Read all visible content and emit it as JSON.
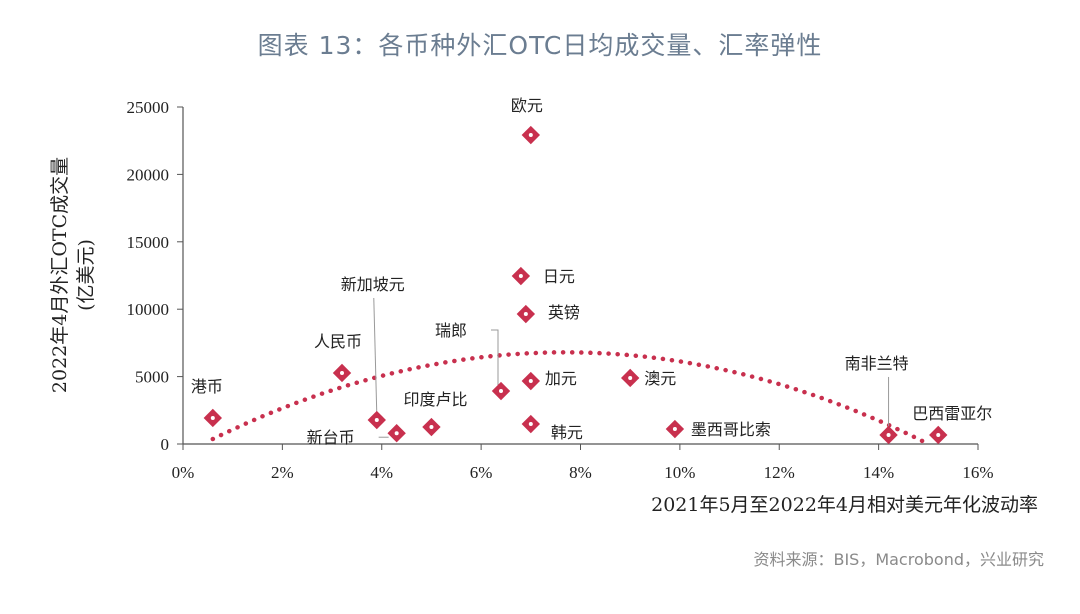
{
  "title": "图表 13：各币种外汇OTC日均成交量、汇率弹性",
  "source": "资料来源：BIS，Macrobond，兴业研究",
  "colors": {
    "marker": "#c8304e",
    "trend": "#c8304e",
    "title": "#6b7d91",
    "axis": "#555555"
  },
  "chart_data": {
    "type": "scatter",
    "title": "图表 13：各币种外汇OTC日均成交量、汇率弹性",
    "xlabel": "2021年5月至2022年4月相对美元年化波动率",
    "ylabel": "2022年4月外汇OTC成交量",
    "ylabel_unit": "(亿美元)",
    "xlim": [
      0,
      16
    ],
    "ylim": [
      0,
      25000
    ],
    "x_ticks": [
      "0%",
      "2%",
      "4%",
      "6%",
      "8%",
      "10%",
      "12%",
      "14%",
      "16%"
    ],
    "y_ticks": [
      "0",
      "5000",
      "10000",
      "15000",
      "20000",
      "25000"
    ],
    "grid": false,
    "points": [
      {
        "name": "港币",
        "x": 0.6,
        "y": 1930
      },
      {
        "name": "人民币",
        "x": 3.2,
        "y": 5270
      },
      {
        "name": "新加坡元",
        "x": 3.9,
        "y": 1780
      },
      {
        "name": "新台币",
        "x": 4.3,
        "y": 800
      },
      {
        "name": "印度卢比",
        "x": 5.0,
        "y": 1260
      },
      {
        "name": "瑞郎",
        "x": 6.4,
        "y": 3930
      },
      {
        "name": "欧元",
        "x": 7.0,
        "y": 22920
      },
      {
        "name": "日元",
        "x": 6.8,
        "y": 12460
      },
      {
        "name": "英镑",
        "x": 6.9,
        "y": 9640
      },
      {
        "name": "加元",
        "x": 7.0,
        "y": 4670
      },
      {
        "name": "韩元",
        "x": 7.0,
        "y": 1480
      },
      {
        "name": "澳元",
        "x": 9.0,
        "y": 4900
      },
      {
        "name": "墨西哥比索",
        "x": 9.9,
        "y": 1110
      },
      {
        "name": "南非兰特",
        "x": 14.2,
        "y": 670
      },
      {
        "name": "巴西雷亚尔",
        "x": 15.2,
        "y": 670
      }
    ],
    "trendline": {
      "type": "polynomial-2",
      "style": "dotted",
      "x_start": 0.6,
      "x_end": 15.0,
      "peak_x": 7.7,
      "peak_y": 6800
    }
  }
}
